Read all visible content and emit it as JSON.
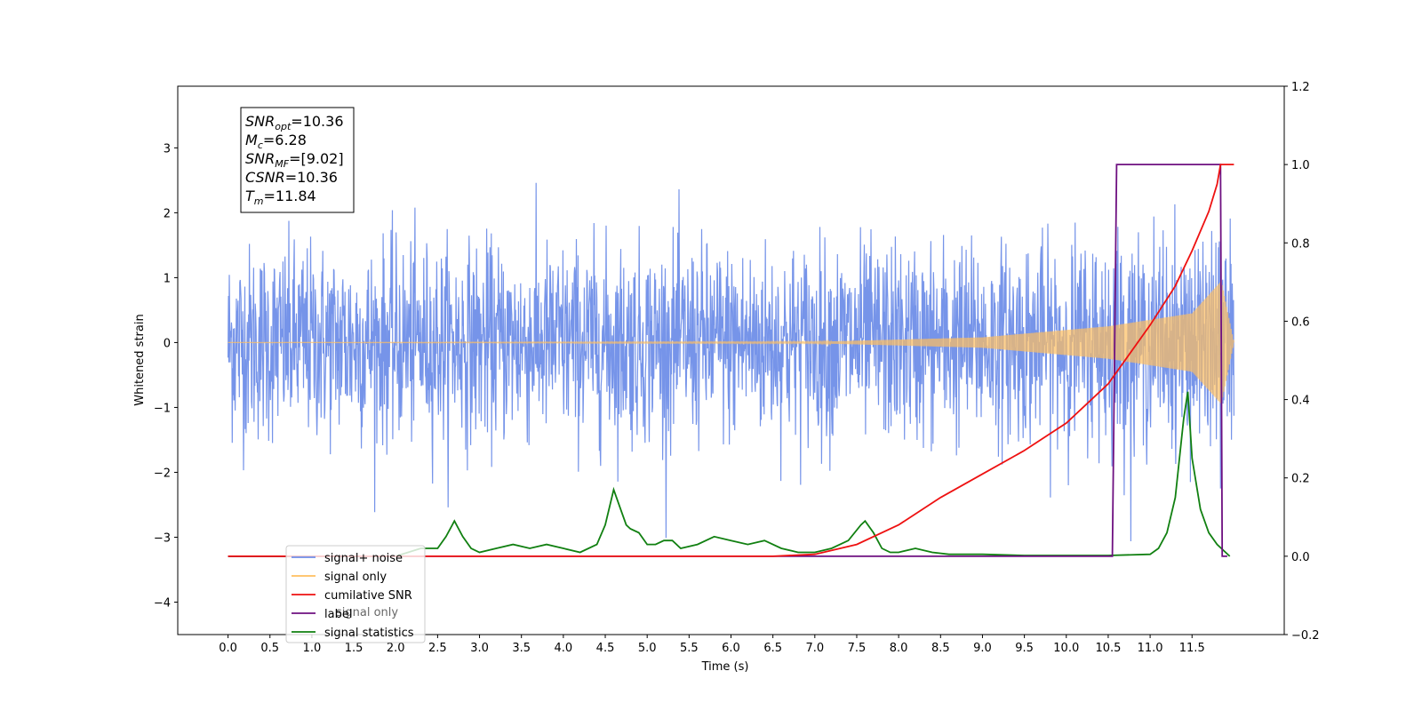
{
  "chart_data": {
    "type": "line",
    "xlabel": "Time (s)",
    "ylabel": "Whitened strain",
    "xlim": [
      -0.6,
      12.6
    ],
    "ylim": [
      -4.5,
      3.95
    ],
    "ylim_right": [
      -0.2,
      1.2
    ],
    "x_ticks": [
      0.0,
      0.5,
      1.0,
      1.5,
      2.0,
      2.5,
      3.0,
      3.5,
      4.0,
      4.5,
      5.0,
      5.5,
      6.0,
      6.5,
      7.0,
      7.5,
      8.0,
      8.5,
      9.0,
      9.5,
      10.0,
      10.5,
      11.0,
      11.5
    ],
    "x_tick_labels": [
      "0.0",
      "0.5",
      "1.0",
      "1.5",
      "2.0",
      "2.5",
      "3.0",
      "3.5",
      "4.0",
      "4.5",
      "5.0",
      "5.5",
      "6.0",
      "6.5",
      "7.0",
      "7.5",
      "8.0",
      "8.5",
      "9.0",
      "9.5",
      "10.0",
      "10.5",
      "11.0",
      "11.5"
    ],
    "y_ticks": [
      3,
      2,
      1,
      0,
      -1,
      -2,
      -3,
      -4
    ],
    "y_tick_labels": [
      "3",
      "2",
      "1",
      "0",
      "−1",
      "−2",
      "−3",
      "−4"
    ],
    "y_right_ticks": [
      1.2,
      1.0,
      0.8,
      0.6,
      0.4,
      0.2,
      0.0,
      -0.2
    ],
    "y_right_tick_labels": [
      "1.2",
      "1.0",
      "0.8",
      "0.6",
      "0.4",
      "0.2",
      "0.0",
      "−0.2"
    ],
    "grid": false,
    "legend_position": "lower-left",
    "annotations": [
      {
        "main": "SNR",
        "sub": "opt",
        "value": "=10.36"
      },
      {
        "main": "M",
        "sub": "c",
        "value": "=6.28"
      },
      {
        "main": "SNR",
        "sub": "MF",
        "value": "=[9.02]"
      },
      {
        "main": "CSNR",
        "sub": "",
        "value": "=10.36"
      },
      {
        "main": "T",
        "sub": "m",
        "value": "=11.84"
      }
    ],
    "series": [
      {
        "name": "signal+ noise",
        "axis": "left",
        "color": "#6f8ee8",
        "amplitude_std": 0.75,
        "x_range": [
          0.0,
          12.0
        ]
      },
      {
        "name": "signal only",
        "axis": "left",
        "color": "#ffbf5f",
        "description_points": [
          [
            0.0,
            0.0
          ],
          [
            7.0,
            0.01
          ],
          [
            9.0,
            0.08
          ],
          [
            10.5,
            0.25
          ],
          [
            11.5,
            0.45
          ],
          [
            11.85,
            0.95
          ],
          [
            12.0,
            0.0
          ]
        ]
      },
      {
        "name": "cumilative SNR",
        "axis": "right",
        "x": [
          0.0,
          6.5,
          7.0,
          7.5,
          8.0,
          8.5,
          9.0,
          9.5,
          10.0,
          10.5,
          11.0,
          11.3,
          11.5,
          11.7,
          11.8,
          11.84,
          11.9,
          12.0
        ],
        "y": [
          0.0,
          0.0,
          0.005,
          0.03,
          0.08,
          0.15,
          0.21,
          0.27,
          0.34,
          0.44,
          0.59,
          0.69,
          0.78,
          0.88,
          0.95,
          1.0,
          1.0,
          1.0
        ]
      },
      {
        "name": "label",
        "axis": "right",
        "x": [
          0.0,
          10.55,
          10.6,
          11.84,
          11.86,
          11.92
        ],
        "y": [
          0.0,
          0.0,
          1.0,
          1.0,
          0.0,
          0.0
        ]
      },
      {
        "name": "signal statistics",
        "axis": "right",
        "x": [
          0.0,
          2.0,
          2.3,
          2.5,
          2.6,
          2.7,
          2.8,
          2.9,
          3.0,
          3.2,
          3.4,
          3.6,
          3.8,
          4.0,
          4.2,
          4.4,
          4.5,
          4.6,
          4.7,
          4.75,
          4.8,
          4.9,
          5.0,
          5.1,
          5.2,
          5.3,
          5.4,
          5.6,
          5.8,
          6.0,
          6.2,
          6.4,
          6.6,
          6.8,
          7.0,
          7.2,
          7.4,
          7.55,
          7.6,
          7.7,
          7.8,
          7.9,
          8.0,
          8.2,
          8.4,
          8.6,
          8.8,
          9.0,
          9.5,
          10.0,
          10.5,
          11.0,
          11.1,
          11.2,
          11.3,
          11.4,
          11.45,
          11.5,
          11.6,
          11.7,
          11.8,
          11.9,
          11.95
        ],
        "y": [
          0.0,
          0.0,
          0.02,
          0.02,
          0.05,
          0.09,
          0.05,
          0.02,
          0.01,
          0.02,
          0.03,
          0.02,
          0.03,
          0.02,
          0.01,
          0.03,
          0.08,
          0.17,
          0.11,
          0.08,
          0.07,
          0.06,
          0.03,
          0.03,
          0.04,
          0.04,
          0.02,
          0.03,
          0.05,
          0.04,
          0.03,
          0.04,
          0.02,
          0.01,
          0.01,
          0.02,
          0.04,
          0.08,
          0.09,
          0.06,
          0.02,
          0.01,
          0.01,
          0.02,
          0.01,
          0.005,
          0.005,
          0.005,
          0.002,
          0.002,
          0.002,
          0.005,
          0.02,
          0.06,
          0.15,
          0.35,
          0.42,
          0.25,
          0.12,
          0.06,
          0.03,
          0.01,
          0.0
        ]
      }
    ],
    "legend": [
      "signal+ noise",
      "signal only",
      "cumilative SNR",
      "label",
      "signal statistics"
    ],
    "legend_overlap_text": "signal only"
  }
}
